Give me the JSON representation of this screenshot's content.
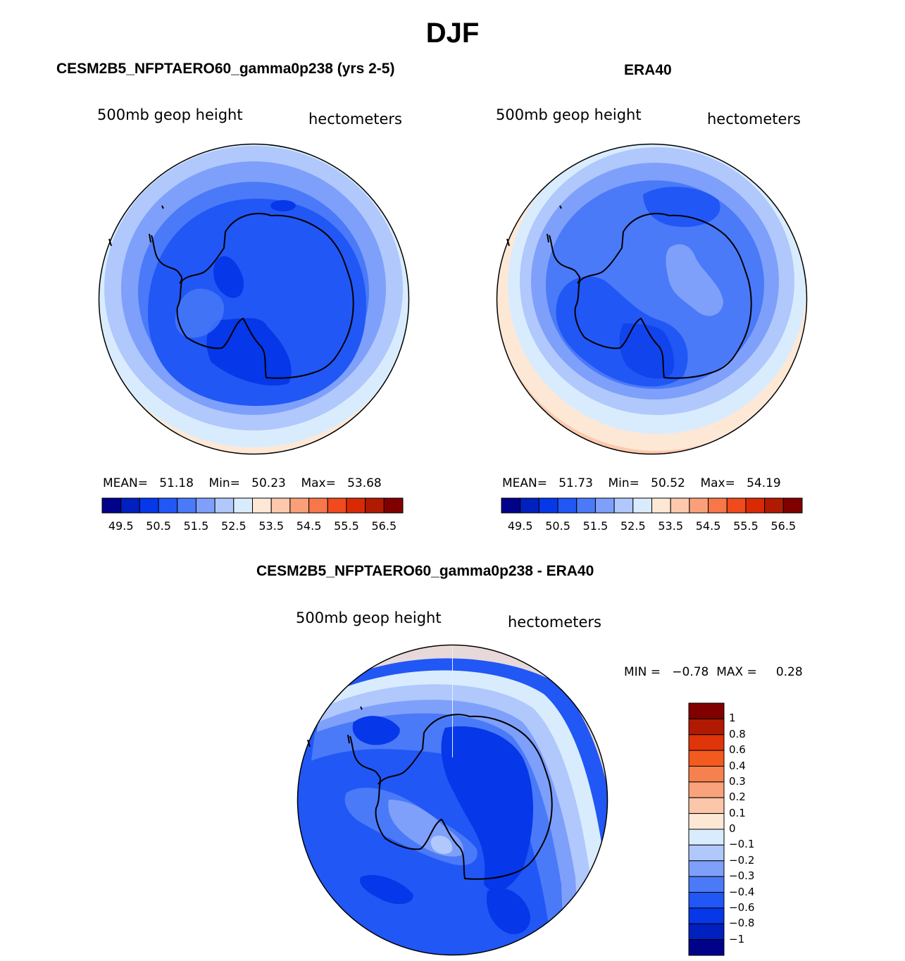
{
  "title": "DJF",
  "panels": [
    {
      "title": "CESM2B5_NFPTAERO60_gamma0p238 (yrs 2-5)",
      "field_label": "500mb geop height",
      "units_label": "hectometers",
      "stats": {
        "mean_label": "MEAN=",
        "mean": "51.18",
        "min_label": "Min=",
        "min": "50.23",
        "max_label": "Max=",
        "max": "53.68"
      }
    },
    {
      "title": "ERA40",
      "field_label": "500mb geop height",
      "units_label": "hectometers",
      "stats": {
        "mean_label": "MEAN=",
        "mean": "51.73",
        "min_label": "Min=",
        "min": "50.52",
        "max_label": "Max=",
        "max": "54.19"
      }
    },
    {
      "title": "CESM2B5_NFPTAERO60_gamma0p238 - ERA40",
      "field_label": "500mb geop height",
      "units_label": "hectometers",
      "stats": {
        "min_label": "MIN =",
        "min": "−0.78",
        "max_label": "MAX =",
        "max": "0.28"
      }
    }
  ],
  "colorbar_horizontal": {
    "colors": [
      "#00038a",
      "#0020c0",
      "#0637e8",
      "#2157f5",
      "#4a7af8",
      "#7ea0fa",
      "#b0c8fc",
      "#d9ecfe",
      "#fde8d6",
      "#fcc9ad",
      "#f9a079",
      "#f7764a",
      "#f04a1d",
      "#d92a06",
      "#b01a02",
      "#800000"
    ],
    "labels": [
      "49.5",
      "50.5",
      "51.5",
      "52.5",
      "53.5",
      "54.5",
      "55.5",
      "56.5"
    ]
  },
  "colorbar_vertical": {
    "colors": [
      "#800000",
      "#b01a02",
      "#e0340a",
      "#f25a20",
      "#f7804f",
      "#f9a27c",
      "#fcc6aa",
      "#fde8d6",
      "#d9ecfe",
      "#b0c8fc",
      "#7ea0fa",
      "#4a7af8",
      "#2157f5",
      "#0637e8",
      "#0020c0",
      "#00038a"
    ],
    "labels": [
      "1",
      "0.8",
      "0.6",
      "0.4",
      "0.3",
      "0.2",
      "0.1",
      "0",
      "−0.1",
      "−0.2",
      "−0.3",
      "−0.4",
      "−0.6",
      "−0.8",
      "−1"
    ]
  }
}
